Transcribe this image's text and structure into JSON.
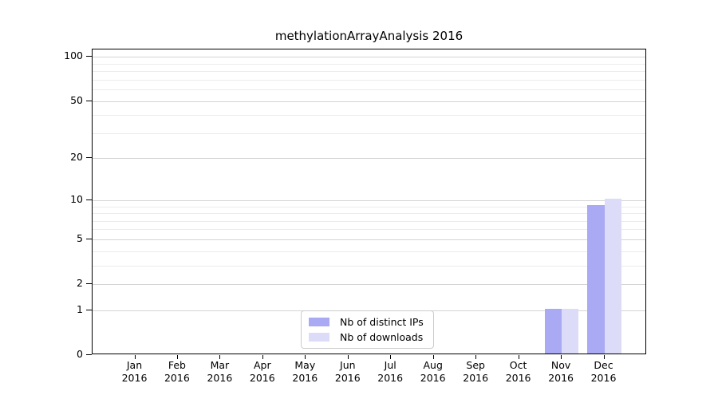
{
  "chart_data": {
    "type": "bar",
    "title": "methylationArrayAnalysis 2016",
    "categories": [
      "Jan",
      "Feb",
      "Mar",
      "Apr",
      "May",
      "Jun",
      "Jul",
      "Aug",
      "Sep",
      "Oct",
      "Nov",
      "Dec"
    ],
    "x_year_label": "2016",
    "series": [
      {
        "name": "Nb of distinct IPs",
        "color": "#a9a9f4",
        "values": [
          0,
          0,
          0,
          0,
          0,
          0,
          0,
          0,
          0,
          0,
          1,
          9
        ]
      },
      {
        "name": "Nb of downloads",
        "color": "#dcdcf9",
        "values": [
          0,
          0,
          0,
          0,
          0,
          0,
          0,
          0,
          0,
          0,
          1,
          10
        ]
      }
    ],
    "yscale": "log1p",
    "ylim": [
      0,
      112
    ],
    "y_major_ticks": [
      0,
      1,
      2,
      5,
      10,
      20,
      50,
      100
    ],
    "y_minor_gridlines": [
      3,
      4,
      6,
      7,
      8,
      9,
      30,
      40,
      60,
      70,
      80,
      90
    ],
    "grid": true,
    "xlabel": "",
    "ylabel": "",
    "legend": {
      "position": "bottom-center",
      "entries": [
        "Nb of distinct IPs",
        "Nb of downloads"
      ]
    }
  },
  "colors": {
    "major_grid": "#d4d4d4",
    "minor_grid": "#ebebeb",
    "spine": "#000000",
    "background": "#ffffff",
    "legend_border": "#cccccc"
  }
}
